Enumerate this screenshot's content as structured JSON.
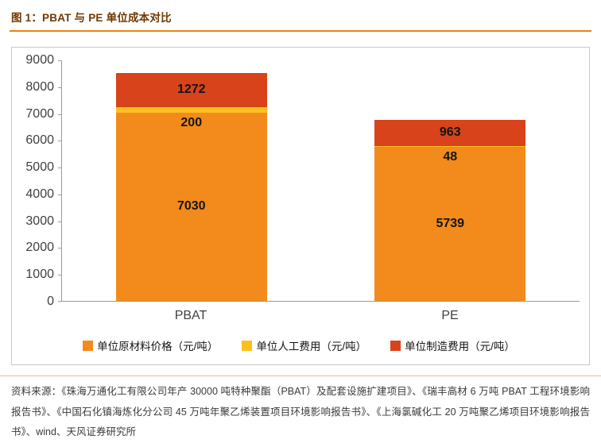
{
  "header": {
    "title": "图 1：PBAT 与 PE 单位成本对比"
  },
  "chart_data": {
    "type": "bar",
    "stacked": true,
    "title": "图 1：PBAT 与 PE 单位成本对比",
    "categories": [
      "PBAT",
      "PE"
    ],
    "series": [
      {
        "name": "单位原材料价格（元/吨）",
        "color": "#F28B1C",
        "values": [
          7030,
          5739
        ]
      },
      {
        "name": "单位人工费用（元/吨）",
        "color": "#FCC01E",
        "values": [
          200,
          48
        ]
      },
      {
        "name": "单位制造费用（元/吨）",
        "color": "#D8431B",
        "values": [
          1272,
          963
        ]
      }
    ],
    "totals": [
      8502,
      6750
    ],
    "xlabel": "",
    "ylabel": "",
    "ylim": [
      0,
      9000
    ],
    "ytick_step": 1000,
    "grid": false,
    "legend_position": "bottom"
  },
  "footer": {
    "source": "资料来源：《珠海万通化工有限公司年产 30000 吨特种聚酯（PBAT）及配套设施扩建项目》、《瑞丰高材 6 万吨 PBAT 工程环境影响报告书》、《中国石化镇海炼化分公司 45 万吨年聚乙烯装置项目环境影响报告书》、《上海氯碱化工 20 万吨聚乙烯项目环境影响报告书》、wind、天风证券研究所"
  }
}
